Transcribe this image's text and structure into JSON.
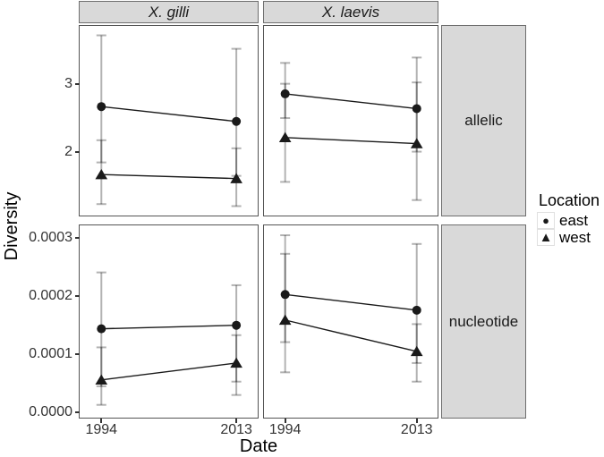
{
  "axis": {
    "y_title": "Diversity",
    "x_title": "Date",
    "x_ticks": [
      "1994",
      "2013"
    ]
  },
  "facets": {
    "col_labels": [
      "X. gilli",
      "X. laevis"
    ],
    "row_labels": [
      "allelic",
      "nucleotide"
    ]
  },
  "legend": {
    "title": "Location",
    "items": [
      {
        "label": "east",
        "marker": "circle"
      },
      {
        "label": "west",
        "marker": "triangle"
      }
    ]
  },
  "colors": {
    "marker": "#1a1a1a",
    "line": "#1a1a1a",
    "strip_bg": "#d9d9d9",
    "panel_border": "#545454",
    "errorbar": "rgba(0,0,0,0.30)",
    "errorbar_single": "#b3b3b3",
    "errorbar_overlap": "#7d7d7d"
  },
  "chart_data": [
    {
      "type": "line",
      "facet_col": "X. gilli",
      "facet_row": "allelic",
      "categories": [
        "1994",
        "2013"
      ],
      "ylim": [
        1.05,
        3.87
      ],
      "yticks": [
        2,
        3
      ],
      "ytick_labels": [
        "2",
        "3"
      ],
      "series": [
        {
          "name": "east",
          "marker": "circle",
          "values": [
            2.67,
            2.45
          ],
          "ci_low": [
            1.84,
            1.64
          ],
          "ci_high": [
            3.73,
            3.53
          ]
        },
        {
          "name": "west",
          "marker": "triangle",
          "values": [
            1.66,
            1.6
          ],
          "ci_low": [
            1.22,
            1.19
          ],
          "ci_high": [
            2.17,
            2.05
          ]
        }
      ]
    },
    {
      "type": "line",
      "facet_col": "X. laevis",
      "facet_row": "allelic",
      "categories": [
        "1994",
        "2013"
      ],
      "ylim": [
        1.05,
        3.87
      ],
      "yticks": [
        2,
        3
      ],
      "ytick_labels": [
        "2",
        "3"
      ],
      "series": [
        {
          "name": "east",
          "marker": "circle",
          "values": [
            2.86,
            2.64
          ],
          "ci_low": [
            2.5,
            2.0
          ],
          "ci_high": [
            3.32,
            3.4
          ]
        },
        {
          "name": "west",
          "marker": "triangle",
          "values": [
            2.21,
            2.12
          ],
          "ci_low": [
            1.55,
            1.28
          ],
          "ci_high": [
            3.01,
            3.03
          ]
        }
      ]
    },
    {
      "type": "line",
      "facet_col": "X. gilli",
      "facet_row": "nucleotide",
      "categories": [
        "1994",
        "2013"
      ],
      "ylim": [
        -1e-05,
        0.000321
      ],
      "yticks": [
        0,
        0.0001,
        0.0002,
        0.0003
      ],
      "ytick_labels": [
        "0.0000",
        "0.0001",
        "0.0002",
        "0.0003"
      ],
      "series": [
        {
          "name": "east",
          "marker": "circle",
          "values": [
            0.000143,
            0.000149
          ],
          "ci_low": [
            4.4e-05,
            5.2e-05
          ],
          "ci_high": [
            0.00024,
            0.000218
          ]
        },
        {
          "name": "west",
          "marker": "triangle",
          "values": [
            5.5e-05,
            8.4e-05
          ],
          "ci_low": [
            1.2e-05,
            2.9e-05
          ],
          "ci_high": [
            0.000111,
            0.000132
          ]
        }
      ]
    },
    {
      "type": "line",
      "facet_col": "X. laevis",
      "facet_row": "nucleotide",
      "categories": [
        "1994",
        "2013"
      ],
      "ylim": [
        -1e-05,
        0.000321
      ],
      "yticks": [
        0,
        0.0001,
        0.0002,
        0.0003
      ],
      "ytick_labels": [
        "0.0000",
        "0.0001",
        "0.0002",
        "0.0003"
      ],
      "series": [
        {
          "name": "east",
          "marker": "circle",
          "values": [
            0.000202,
            0.000175
          ],
          "ci_low": [
            0.00012,
            8.4e-05
          ],
          "ci_high": [
            0.000304,
            0.000289
          ]
        },
        {
          "name": "west",
          "marker": "triangle",
          "values": [
            0.000158,
            0.000104
          ],
          "ci_low": [
            6.8e-05,
            5.2e-05
          ],
          "ci_high": [
            0.000272,
            0.000151
          ]
        }
      ]
    }
  ]
}
